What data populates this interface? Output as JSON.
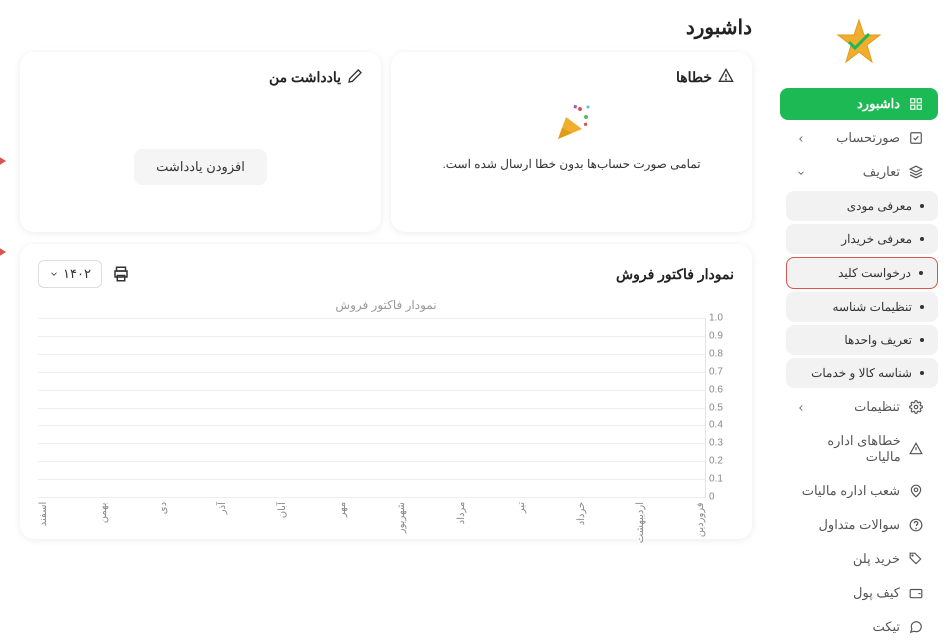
{
  "page_title": "داشبورد",
  "sidebar": {
    "items": [
      {
        "label": "داشبورد",
        "icon": "grid",
        "active": true
      },
      {
        "label": "صورتحساب",
        "icon": "check-square",
        "chevron": "left"
      },
      {
        "label": "تعاریف",
        "icon": "layers",
        "chevron": "down",
        "submenu": [
          {
            "label": "معرفی مودی"
          },
          {
            "label": "معرفی خریدار"
          },
          {
            "label": "درخواست کلید",
            "highlighted": true
          },
          {
            "label": "تنظیمات شناسه"
          },
          {
            "label": "تعریف واحدها"
          },
          {
            "label": "شناسه کالا و خدمات"
          }
        ]
      },
      {
        "label": "تنظیمات",
        "icon": "gear",
        "chevron": "left"
      },
      {
        "label": "خطاهای اداره مالیات",
        "icon": "warning"
      },
      {
        "label": "شعب اداره مالیات",
        "icon": "location"
      },
      {
        "label": "سوالات متداول",
        "icon": "help"
      },
      {
        "label": "خرید پلن",
        "icon": "tag"
      },
      {
        "label": "کیف پول",
        "icon": "wallet"
      },
      {
        "label": "تیکت",
        "icon": "chat"
      }
    ]
  },
  "errors_card": {
    "title": "خطاها",
    "message": "تمامی صورت حساب‌ها بدون خطا ارسال شده است."
  },
  "notes_card": {
    "title": "یادداشت من",
    "add_button": "افزودن یادداشت"
  },
  "chart": {
    "title": "نمودار فاکتور فروش",
    "subtitle": "نمودار فاکتور فروش",
    "year": "۱۴۰۲",
    "y_ticks": [
      "1.0",
      "0.9",
      "0.8",
      "0.7",
      "0.6",
      "0.5",
      "0.4",
      "0.3",
      "0.2",
      "0.1",
      "0"
    ],
    "x_labels": [
      "فروردین",
      "اردیبهشت",
      "خرداد",
      "تیر",
      "مرداد",
      "شهریور",
      "مهر",
      "آبان",
      "آذر",
      "دی",
      "بهمن",
      "اسفند"
    ]
  },
  "annotations": [
    {
      "num": "1"
    },
    {
      "num": "2"
    }
  ]
}
